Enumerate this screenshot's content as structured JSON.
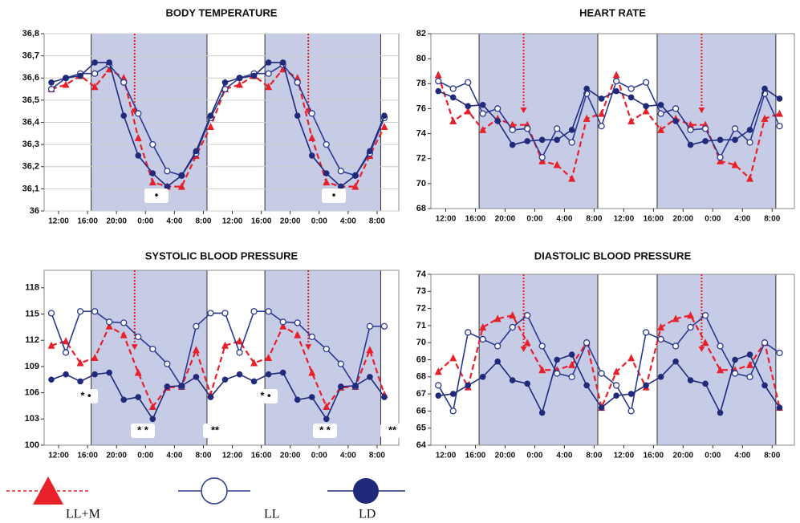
{
  "chart_data": [
    {
      "type": "line",
      "title": "BODY TEMPERATURE",
      "x": [
        -1,
        1,
        3,
        5,
        7,
        9,
        11,
        13,
        15,
        17,
        19,
        21,
        23,
        25,
        27,
        29,
        31,
        33,
        35,
        37,
        39,
        41,
        43,
        45
      ],
      "xlim": [
        -2,
        47
      ],
      "xticks": [
        {
          "value": 0,
          "label": "12:00"
        },
        {
          "value": 4,
          "label": "16:00"
        },
        {
          "value": 8,
          "label": "20:00"
        },
        {
          "value": 12,
          "label": "0:00"
        },
        {
          "value": 16,
          "label": "4:00"
        },
        {
          "value": 20,
          "label": "8:00"
        },
        {
          "value": 24,
          "label": "12:00"
        },
        {
          "value": 28,
          "label": "16:00"
        },
        {
          "value": 32,
          "label": "20:00"
        },
        {
          "value": 36,
          "label": "0:00"
        },
        {
          "value": 40,
          "label": "4:00"
        },
        {
          "value": 44,
          "label": "8:00"
        }
      ],
      "ylim": [
        36,
        36.8
      ],
      "yticks": [
        {
          "value": 36,
          "label": "36"
        },
        {
          "value": 36.1,
          "label": "36,1"
        },
        {
          "value": 36.2,
          "label": "36,2"
        },
        {
          "value": 36.3,
          "label": "36,3"
        },
        {
          "value": 36.4,
          "label": "36,4"
        },
        {
          "value": 36.5,
          "label": "36,5"
        },
        {
          "value": 36.6,
          "label": "36,6"
        },
        {
          "value": 36.7,
          "label": "36,7"
        },
        {
          "value": 36.8,
          "label": "36,8"
        }
      ],
      "grid": true,
      "shaded": [
        [
          4.5,
          20.5
        ],
        [
          28.5,
          44.5
        ]
      ],
      "marker_lines": [
        10.5,
        34.5
      ],
      "annotations": [
        "•",
        "•"
      ],
      "series": [
        {
          "name": "LL+M",
          "color": "#e8202a",
          "values": [
            36.55,
            36.57,
            36.61,
            36.56,
            36.64,
            36.6,
            36.33,
            36.13,
            36.11,
            36.11,
            36.25,
            36.38,
            36.55,
            36.57,
            36.61,
            36.56,
            36.64,
            36.6,
            36.33,
            36.13,
            36.11,
            36.11,
            36.25,
            36.38
          ]
        },
        {
          "name": "LL",
          "color": "#2b3990",
          "values": [
            36.55,
            36.6,
            36.62,
            36.62,
            36.66,
            36.58,
            36.44,
            36.3,
            36.18,
            36.16,
            36.26,
            36.42,
            36.55,
            36.6,
            36.62,
            36.62,
            36.66,
            36.58,
            36.44,
            36.3,
            36.18,
            36.16,
            36.26,
            36.42
          ]
        },
        {
          "name": "LD",
          "color": "#1f2a7a",
          "values": [
            36.58,
            36.6,
            36.61,
            36.67,
            36.67,
            36.43,
            36.25,
            36.17,
            36.11,
            36.16,
            36.27,
            36.43,
            36.58,
            36.6,
            36.61,
            36.67,
            36.67,
            36.43,
            36.25,
            36.17,
            36.11,
            36.16,
            36.27,
            36.43
          ]
        }
      ]
    },
    {
      "type": "line",
      "title": "HEART RATE",
      "x": [
        -1,
        1,
        3,
        5,
        7,
        9,
        11,
        13,
        15,
        17,
        19,
        21,
        23,
        25,
        27,
        29,
        31,
        33,
        35,
        37,
        39,
        41,
        43,
        45
      ],
      "xlim": [
        -2,
        47
      ],
      "xticks": [
        {
          "value": 0,
          "label": "12:00"
        },
        {
          "value": 4,
          "label": "16:00"
        },
        {
          "value": 8,
          "label": "20:00"
        },
        {
          "value": 12,
          "label": "0:00"
        },
        {
          "value": 16,
          "label": "4:00"
        },
        {
          "value": 20,
          "label": "8:00"
        },
        {
          "value": 24,
          "label": "12:00"
        },
        {
          "value": 28,
          "label": "16:00"
        },
        {
          "value": 32,
          "label": "20:00"
        },
        {
          "value": 36,
          "label": "0:00"
        },
        {
          "value": 40,
          "label": "4:00"
        },
        {
          "value": 44,
          "label": "8:00"
        }
      ],
      "ylim": [
        68,
        82
      ],
      "yticks": [
        68,
        70,
        72,
        74,
        76,
        78,
        80,
        82
      ],
      "grid": false,
      "shaded": [
        [
          4.5,
          20.5
        ],
        [
          28.5,
          44.5
        ]
      ],
      "marker_lines": [
        10.5,
        34.5
      ],
      "annotations": [],
      "series": [
        {
          "name": "LL+M",
          "color": "#e8202a",
          "values": [
            78.7,
            75.0,
            75.8,
            74.3,
            75.2,
            74.7,
            74.7,
            71.8,
            71.5,
            70.4,
            75.2,
            75.6,
            78.7,
            75.0,
            75.8,
            74.3,
            75.2,
            74.7,
            74.7,
            71.8,
            71.5,
            70.4,
            75.2,
            75.6
          ]
        },
        {
          "name": "LL",
          "color": "#2b3990",
          "values": [
            78.2,
            77.6,
            78.1,
            75.6,
            76.0,
            74.3,
            74.4,
            72.1,
            74.4,
            73.3,
            77.2,
            74.6,
            78.2,
            77.6,
            78.1,
            75.6,
            76.0,
            74.3,
            74.4,
            72.1,
            74.4,
            73.3,
            77.2,
            74.6
          ]
        },
        {
          "name": "LD",
          "color": "#1f2a7a",
          "values": [
            77.4,
            76.9,
            76.2,
            76.3,
            75.0,
            73.1,
            73.4,
            73.5,
            73.5,
            74.3,
            77.6,
            76.8,
            77.4,
            76.9,
            76.2,
            76.3,
            75.0,
            73.1,
            73.4,
            73.5,
            73.5,
            74.3,
            77.6,
            76.8
          ]
        }
      ]
    },
    {
      "type": "line",
      "title": "SYSTOLIC BLOOD PRESSURE",
      "x": [
        -1,
        1,
        3,
        5,
        7,
        9,
        11,
        13,
        15,
        17,
        19,
        21,
        23,
        25,
        27,
        29,
        31,
        33,
        35,
        37,
        39,
        41,
        43,
        45
      ],
      "xlim": [
        -2,
        47
      ],
      "xticks": [
        {
          "value": 0,
          "label": "12:00"
        },
        {
          "value": 4,
          "label": "16:00"
        },
        {
          "value": 8,
          "label": "20:00"
        },
        {
          "value": 12,
          "label": "0:00"
        },
        {
          "value": 16,
          "label": "4:00"
        },
        {
          "value": 20,
          "label": "8:00"
        },
        {
          "value": 24,
          "label": "12:00"
        },
        {
          "value": 28,
          "label": "16:00"
        },
        {
          "value": 32,
          "label": "20:00"
        },
        {
          "value": 36,
          "label": "0:00"
        },
        {
          "value": 40,
          "label": "4:00"
        },
        {
          "value": 44,
          "label": "8:00"
        }
      ],
      "ylim": [
        100,
        120
      ],
      "yticks": [
        100,
        103,
        106,
        109,
        112,
        115,
        118
      ],
      "grid": false,
      "shaded": [
        [
          4.5,
          20.5
        ],
        [
          28.5,
          44.5
        ]
      ],
      "marker_lines": [
        10.5,
        34.5
      ],
      "annotations": [
        "* •",
        "* *",
        "**",
        "* •",
        "* *",
        "**"
      ],
      "series": [
        {
          "name": "LL+M",
          "color": "#e8202a",
          "values": [
            111.4,
            111.9,
            109.4,
            110.0,
            113.6,
            112.6,
            108.3,
            104.4,
            106.6,
            106.7,
            110.9,
            105.8,
            111.4,
            111.9,
            109.4,
            110.0,
            113.6,
            112.6,
            108.3,
            104.4,
            106.6,
            106.7,
            110.9,
            105.8
          ]
        },
        {
          "name": "LL",
          "color": "#2b3990",
          "values": [
            115.1,
            110.6,
            115.3,
            115.3,
            114.1,
            114.0,
            112.4,
            111.0,
            109.3,
            106.7,
            113.6,
            115.1,
            115.1,
            110.6,
            115.3,
            115.3,
            114.1,
            114.0,
            112.4,
            111.0,
            109.3,
            106.7,
            113.6,
            113.6
          ]
        },
        {
          "name": "LD",
          "color": "#1f2a7a",
          "values": [
            107.5,
            108.1,
            107.3,
            108.1,
            108.3,
            105.2,
            105.5,
            103.0,
            106.7,
            106.8,
            107.8,
            105.5,
            107.5,
            108.1,
            107.3,
            108.1,
            108.3,
            105.2,
            105.5,
            103.0,
            106.7,
            106.8,
            107.8,
            105.5
          ]
        }
      ]
    },
    {
      "type": "line",
      "title": "DIASTOLIC BLOOD PRESSURE",
      "x": [
        -1,
        1,
        3,
        5,
        7,
        9,
        11,
        13,
        15,
        17,
        19,
        21,
        23,
        25,
        27,
        29,
        31,
        33,
        35,
        37,
        39,
        41,
        43,
        45
      ],
      "xlim": [
        -2,
        47
      ],
      "xticks": [
        {
          "value": 0,
          "label": "12:00"
        },
        {
          "value": 4,
          "label": "16:00"
        },
        {
          "value": 8,
          "label": "20:00"
        },
        {
          "value": 12,
          "label": "0:00"
        },
        {
          "value": 16,
          "label": "4:00"
        },
        {
          "value": 20,
          "label": "8:00"
        },
        {
          "value": 24,
          "label": "12:00"
        },
        {
          "value": 28,
          "label": "16:00"
        },
        {
          "value": 32,
          "label": "20:00"
        },
        {
          "value": 36,
          "label": "0:00"
        },
        {
          "value": 40,
          "label": "4:00"
        },
        {
          "value": 44,
          "label": "8:00"
        }
      ],
      "ylim": [
        64,
        74
      ],
      "yticks": [
        64,
        65,
        66,
        67,
        68,
        69,
        70,
        71,
        72,
        73,
        74
      ],
      "grid": false,
      "shaded": [
        [
          4.5,
          20.5
        ],
        [
          28.5,
          44.5
        ]
      ],
      "marker_lines": [
        10.5,
        34.5
      ],
      "annotations": [],
      "series": [
        {
          "name": "LL+M",
          "color": "#e8202a",
          "values": [
            68.3,
            69.1,
            67.4,
            70.9,
            71.4,
            71.6,
            70.0,
            68.4,
            68.4,
            68.7,
            70.0,
            66.2,
            68.3,
            69.1,
            67.4,
            70.9,
            71.4,
            71.6,
            70.0,
            68.4,
            68.4,
            68.7,
            70.0,
            66.2
          ]
        },
        {
          "name": "LL",
          "color": "#2b3990",
          "values": [
            67.5,
            66.0,
            70.6,
            70.2,
            69.8,
            70.9,
            71.6,
            69.8,
            68.2,
            68.0,
            70.0,
            68.2,
            67.5,
            66.0,
            70.6,
            70.2,
            69.8,
            70.9,
            71.6,
            69.8,
            68.2,
            68.0,
            70.0,
            69.4
          ]
        },
        {
          "name": "LD",
          "color": "#1f2a7a",
          "values": [
            66.9,
            67.0,
            67.5,
            68.0,
            68.9,
            67.8,
            67.6,
            65.9,
            69.0,
            69.3,
            67.5,
            66.2,
            66.9,
            67.0,
            67.5,
            68.0,
            68.9,
            67.8,
            67.6,
            65.9,
            69.0,
            69.3,
            67.5,
            66.2
          ]
        }
      ]
    }
  ]
}
